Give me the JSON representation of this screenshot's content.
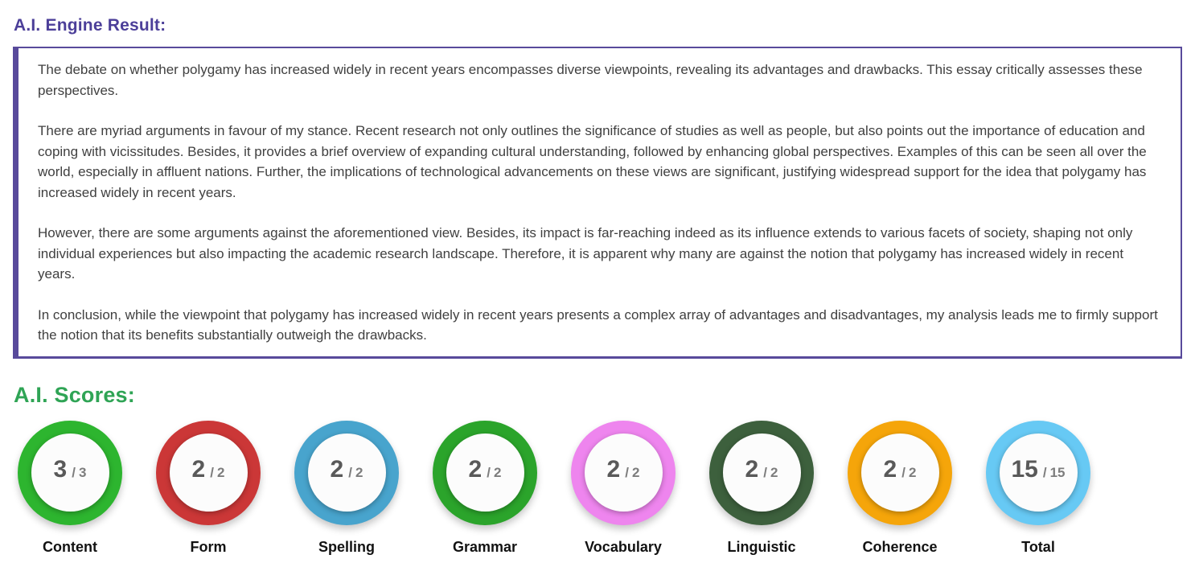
{
  "header": {
    "engine_result": "A.I. Engine Result:",
    "ai_scores": "A.I. Scores:"
  },
  "essay": {
    "paragraphs": [
      "The debate on whether polygamy has increased widely in recent years encompasses diverse viewpoints, revealing its advantages and drawbacks. This essay critically assesses these perspectives.",
      "There are myriad arguments in favour of my stance. Recent research not only outlines the significance of studies as well as people, but also points out the importance of education and coping with vicissitudes. Besides, it provides a brief overview of expanding cultural understanding, followed by enhancing global perspectives. Examples of this can be seen all over the world, especially in affluent nations. Further, the implications of technological advancements on these views are significant, justifying widespread support for the idea that polygamy has increased widely in recent years.",
      "However, there are some arguments against the aforementioned view. Besides, its impact is far-reaching indeed as its influence extends to various facets of society, shaping not only individual experiences but also impacting the academic research landscape. Therefore, it is apparent why many are against the notion that polygamy has increased widely in recent years.",
      "In conclusion, while the viewpoint that polygamy has increased widely in recent years presents a complex array of advantages and disadvantages, my analysis leads me to firmly support the notion that its benefits substantially outweigh the drawbacks."
    ]
  },
  "scores": {
    "separator": "/",
    "items": [
      {
        "label": "Content",
        "score": "3",
        "max": "3",
        "ring_color": "#2db52f"
      },
      {
        "label": "Form",
        "score": "2",
        "max": "2",
        "ring_color": "#cb3737"
      },
      {
        "label": "Spelling",
        "score": "2",
        "max": "2",
        "ring_color": "#48a4cd"
      },
      {
        "label": "Grammar",
        "score": "2",
        "max": "2",
        "ring_color": "#2ba42b"
      },
      {
        "label": "Vocabulary",
        "score": "2",
        "max": "2",
        "ring_color": "#ee85ee"
      },
      {
        "label": "Linguistic",
        "score": "2",
        "max": "2",
        "ring_color": "#3d603d"
      },
      {
        "label": "Coherence",
        "score": "2",
        "max": "2",
        "ring_color": "#f5a50a"
      },
      {
        "label": "Total",
        "score": "15",
        "max": "15",
        "ring_color": "#67c9f4"
      }
    ]
  },
  "colors": {
    "engine_result_header": "#4c3f99",
    "scores_header": "#2fa455",
    "essay_border": "#584a9b",
    "essay_text": "#404040",
    "score_number": "#595959",
    "score_max": "#7d7d7d",
    "label_text": "#121212"
  }
}
